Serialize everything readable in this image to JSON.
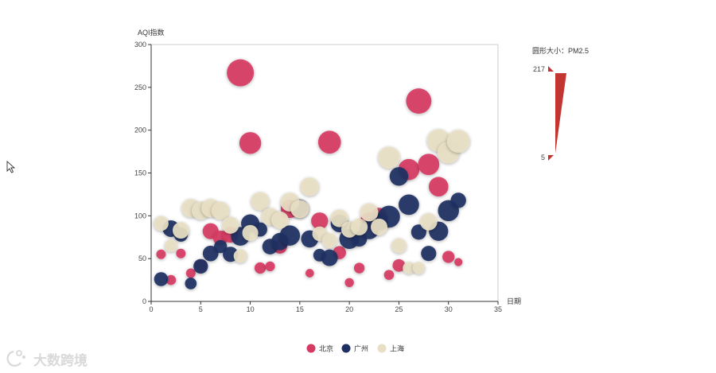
{
  "chart_data": {
    "type": "scatter",
    "ylabel": "AQI指数",
    "xlabel": "日期",
    "xlim": [
      0,
      35
    ],
    "ylim": [
      0,
      300
    ],
    "xticks": [
      "0",
      "5",
      "10",
      "15",
      "20",
      "25",
      "30",
      "35"
    ],
    "yticks": [
      "0",
      "50",
      "100",
      "150",
      "200",
      "250",
      "300"
    ],
    "size_label": "圆形大小：PM2.5",
    "size_max": "217",
    "size_min": "5",
    "legend_position": "bottom-center",
    "series": [
      {
        "name": "北京",
        "color": "#d63a63",
        "points": [
          {
            "x": 1,
            "y": 55,
            "s": 10
          },
          {
            "x": 2,
            "y": 25,
            "s": 12
          },
          {
            "x": 3,
            "y": 56,
            "s": 10
          },
          {
            "x": 4,
            "y": 33,
            "s": 10
          },
          {
            "x": 5,
            "y": 42,
            "s": 22
          },
          {
            "x": 6,
            "y": 82,
            "s": 55
          },
          {
            "x": 7,
            "y": 74,
            "s": 45
          },
          {
            "x": 8,
            "y": 78,
            "s": 55
          },
          {
            "x": 9,
            "y": 267,
            "s": 217
          },
          {
            "x": 10,
            "y": 185,
            "s": 127
          },
          {
            "x": 11,
            "y": 39,
            "s": 19
          },
          {
            "x": 12,
            "y": 41,
            "s": 11
          },
          {
            "x": 13,
            "y": 64,
            "s": 38
          },
          {
            "x": 14,
            "y": 108,
            "s": 79
          },
          {
            "x": 15,
            "y": 108,
            "s": 63
          },
          {
            "x": 16,
            "y": 33,
            "s": 6
          },
          {
            "x": 17,
            "y": 94,
            "s": 66
          },
          {
            "x": 18,
            "y": 186,
            "s": 142
          },
          {
            "x": 19,
            "y": 57,
            "s": 31
          },
          {
            "x": 20,
            "y": 22,
            "s": 8
          },
          {
            "x": 21,
            "y": 39,
            "s": 15
          },
          {
            "x": 22,
            "y": 94,
            "s": 69
          },
          {
            "x": 23,
            "y": 99,
            "s": 73
          },
          {
            "x": 24,
            "y": 31,
            "s": 12
          },
          {
            "x": 25,
            "y": 42,
            "s": 27
          },
          {
            "x": 26,
            "y": 154,
            "s": 117
          },
          {
            "x": 27,
            "y": 234,
            "s": 185
          },
          {
            "x": 28,
            "y": 160,
            "s": 120
          },
          {
            "x": 29,
            "y": 134,
            "s": 96
          },
          {
            "x": 30,
            "y": 52,
            "s": 24
          },
          {
            "x": 31,
            "y": 46,
            "s": 5
          }
        ]
      },
      {
        "name": "广州",
        "color": "#1e2f63",
        "points": [
          {
            "x": 1,
            "y": 26,
            "s": 37
          },
          {
            "x": 2,
            "y": 85,
            "s": 62
          },
          {
            "x": 3,
            "y": 78,
            "s": 38
          },
          {
            "x": 4,
            "y": 21,
            "s": 21
          },
          {
            "x": 5,
            "y": 41,
            "s": 42
          },
          {
            "x": 6,
            "y": 56,
            "s": 52
          },
          {
            "x": 7,
            "y": 64,
            "s": 30
          },
          {
            "x": 8,
            "y": 55,
            "s": 48
          },
          {
            "x": 9,
            "y": 76,
            "s": 85
          },
          {
            "x": 10,
            "y": 91,
            "s": 81
          },
          {
            "x": 11,
            "y": 84,
            "s": 39
          },
          {
            "x": 12,
            "y": 64,
            "s": 51
          },
          {
            "x": 13,
            "y": 70,
            "s": 69
          },
          {
            "x": 14,
            "y": 77,
            "s": 105
          },
          {
            "x": 15,
            "y": 109,
            "s": 68
          },
          {
            "x": 16,
            "y": 73,
            "s": 68
          },
          {
            "x": 17,
            "y": 54,
            "s": 27
          },
          {
            "x": 18,
            "y": 51,
            "s": 61
          },
          {
            "x": 19,
            "y": 91,
            "s": 71
          },
          {
            "x": 20,
            "y": 73,
            "s": 102
          },
          {
            "x": 21,
            "y": 73,
            "s": 50
          },
          {
            "x": 22,
            "y": 84,
            "s": 94
          },
          {
            "x": 23,
            "y": 93,
            "s": 77
          },
          {
            "x": 24,
            "y": 99,
            "s": 130
          },
          {
            "x": 25,
            "y": 146,
            "s": 84
          },
          {
            "x": 26,
            "y": 113,
            "s": 108
          },
          {
            "x": 27,
            "y": 81,
            "s": 48
          },
          {
            "x": 28,
            "y": 56,
            "s": 48
          },
          {
            "x": 29,
            "y": 82,
            "s": 92
          },
          {
            "x": 30,
            "y": 106,
            "s": 116
          },
          {
            "x": 31,
            "y": 118,
            "s": 50
          }
        ]
      },
      {
        "name": "上海",
        "color": "#e8dfc4",
        "points": [
          {
            "x": 1,
            "y": 91,
            "s": 45
          },
          {
            "x": 2,
            "y": 65,
            "s": 27
          },
          {
            "x": 3,
            "y": 83,
            "s": 60
          },
          {
            "x": 4,
            "y": 109,
            "s": 81
          },
          {
            "x": 5,
            "y": 106,
            "s": 77
          },
          {
            "x": 6,
            "y": 109,
            "s": 81
          },
          {
            "x": 7,
            "y": 106,
            "s": 77
          },
          {
            "x": 8,
            "y": 89,
            "s": 65
          },
          {
            "x": 9,
            "y": 53,
            "s": 33
          },
          {
            "x": 10,
            "y": 80,
            "s": 55
          },
          {
            "x": 11,
            "y": 117,
            "s": 81
          },
          {
            "x": 12,
            "y": 99,
            "s": 71
          },
          {
            "x": 13,
            "y": 95,
            "s": 69
          },
          {
            "x": 14,
            "y": 116,
            "s": 87
          },
          {
            "x": 15,
            "y": 108,
            "s": 80
          },
          {
            "x": 16,
            "y": 134,
            "s": 83
          },
          {
            "x": 17,
            "y": 79,
            "s": 43
          },
          {
            "x": 18,
            "y": 71,
            "s": 46
          },
          {
            "x": 19,
            "y": 97,
            "s": 71
          },
          {
            "x": 20,
            "y": 84,
            "s": 57
          },
          {
            "x": 21,
            "y": 87,
            "s": 63
          },
          {
            "x": 22,
            "y": 104,
            "s": 77
          },
          {
            "x": 23,
            "y": 87,
            "s": 62
          },
          {
            "x": 24,
            "y": 168,
            "s": 128
          },
          {
            "x": 25,
            "y": 65,
            "s": 45
          },
          {
            "x": 26,
            "y": 39,
            "s": 24
          },
          {
            "x": 27,
            "y": 39,
            "s": 24
          },
          {
            "x": 28,
            "y": 93,
            "s": 68
          },
          {
            "x": 29,
            "y": 188,
            "s": 143
          },
          {
            "x": 30,
            "y": 174,
            "s": 131
          },
          {
            "x": 31,
            "y": 187,
            "s": 143
          }
        ]
      }
    ]
  },
  "watermark": "大数跨境"
}
